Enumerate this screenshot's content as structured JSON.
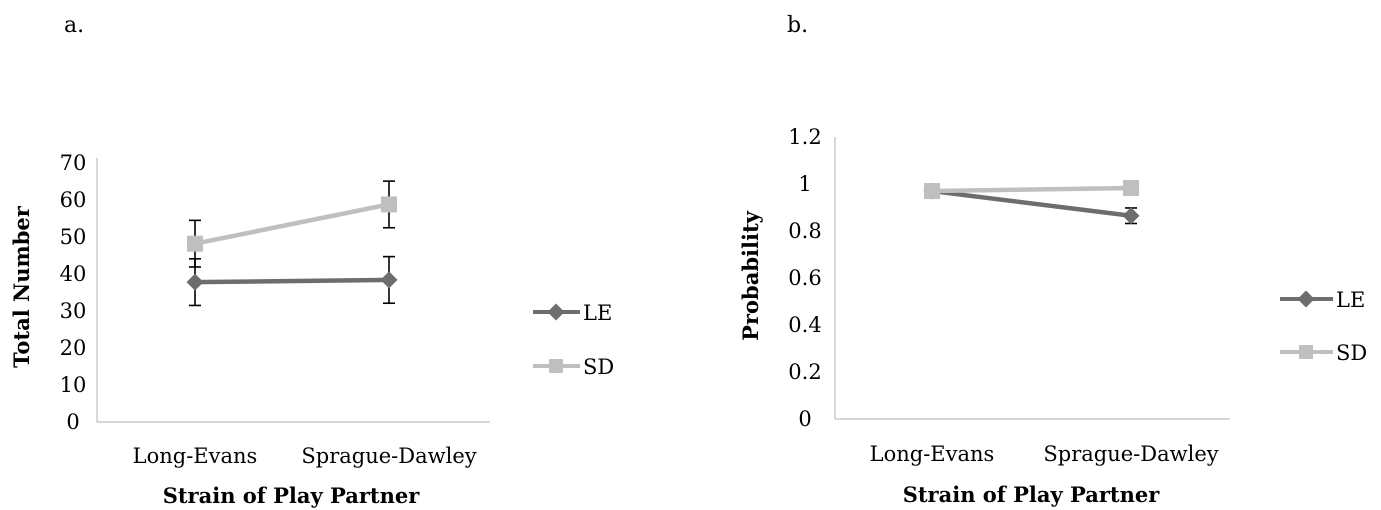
{
  "chart_data": [
    {
      "type": "line",
      "panel_label": "a.",
      "categories": [
        "Long-Evans",
        "Sprague-Dawley"
      ],
      "ylim": [
        0,
        70
      ],
      "yticks": [
        "0",
        "10",
        "20",
        "30",
        "40",
        "50",
        "60",
        "70"
      ],
      "xlabel": "Strain of Play Partner",
      "ylabel": "Total Number",
      "legend_position": "right",
      "series": [
        {
          "name": "LE",
          "color": "#6d6d6d",
          "marker": "diamond",
          "values": [
            37.8,
            38.4
          ],
          "errors": [
            6.3,
            6.3
          ]
        },
        {
          "name": "SD",
          "color": "#bfbfbf",
          "marker": "square",
          "values": [
            48.2,
            58.8
          ],
          "errors": [
            6.3,
            6.3
          ]
        }
      ]
    },
    {
      "type": "line",
      "panel_label": "b.",
      "categories": [
        "Long-Evans",
        "Sprague-Dawley"
      ],
      "ylim": [
        0,
        1.2
      ],
      "yticks": [
        "0",
        "0.2",
        "0.4",
        "0.6",
        "0.8",
        "1",
        "1.2"
      ],
      "xlabel": "Strain of Play Partner",
      "ylabel": "Probability",
      "legend_position": "right",
      "series": [
        {
          "name": "LE",
          "color": "#6d6d6d",
          "marker": "diamond",
          "values": [
            0.97,
            0.865
          ],
          "errors": [
            0,
            0.033
          ]
        },
        {
          "name": "SD",
          "color": "#bfbfbf",
          "marker": "square",
          "values": [
            0.97,
            0.983
          ],
          "errors": [
            0,
            0
          ]
        }
      ]
    }
  ]
}
